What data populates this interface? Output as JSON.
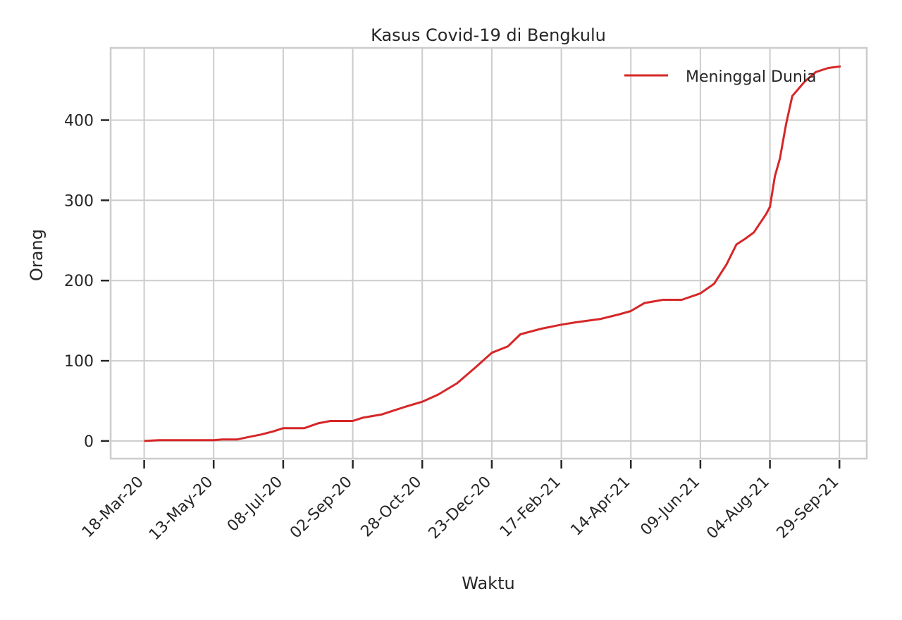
{
  "chart_data": {
    "type": "line",
    "title": "Kasus Covid-19 di Bengkulu",
    "xlabel": "Waktu",
    "ylabel": "Orang",
    "ylim": [
      -22,
      490
    ],
    "xlim": [
      "2020-02-20",
      "2021-10-21"
    ],
    "grid": true,
    "legend_position": "top-right",
    "x_ticks": [
      "2020-03-18",
      "2020-05-13",
      "2020-07-08",
      "2020-09-02",
      "2020-10-28",
      "2020-12-23",
      "2021-02-17",
      "2021-04-14",
      "2021-06-09",
      "2021-08-04",
      "2021-09-29"
    ],
    "x_tick_labels": [
      "18-Mar-20",
      "13-May-20",
      "08-Jul-20",
      "02-Sep-20",
      "28-Oct-20",
      "23-Dec-20",
      "17-Feb-21",
      "14-Apr-21",
      "09-Jun-21",
      "04-Aug-21",
      "29-Sep-21"
    ],
    "y_ticks": [
      0,
      100,
      200,
      300,
      400
    ],
    "y_tick_labels": [
      "0",
      "100",
      "200",
      "300",
      "400"
    ],
    "series": [
      {
        "name": "Meninggal Dunia",
        "color": "#d62728",
        "x": [
          "2020-03-18",
          "2020-03-30",
          "2020-04-15",
          "2020-05-13",
          "2020-05-20",
          "2020-06-01",
          "2020-06-10",
          "2020-06-20",
          "2020-06-30",
          "2020-07-08",
          "2020-07-25",
          "2020-08-05",
          "2020-08-15",
          "2020-09-02",
          "2020-09-10",
          "2020-09-25",
          "2020-10-05",
          "2020-10-15",
          "2020-10-28",
          "2020-11-10",
          "2020-11-25",
          "2020-12-10",
          "2020-12-23",
          "2021-01-05",
          "2021-01-15",
          "2021-02-01",
          "2021-02-17",
          "2021-03-01",
          "2021-03-20",
          "2021-04-05",
          "2021-04-14",
          "2021-04-25",
          "2021-05-10",
          "2021-05-25",
          "2021-06-09",
          "2021-06-20",
          "2021-06-30",
          "2021-07-08",
          "2021-07-15",
          "2021-07-22",
          "2021-08-01",
          "2021-08-04",
          "2021-08-08",
          "2021-08-12",
          "2021-08-17",
          "2021-08-22",
          "2021-09-01",
          "2021-09-10",
          "2021-09-20",
          "2021-09-30"
        ],
        "values": [
          0,
          1,
          1,
          1,
          2,
          2,
          5,
          8,
          12,
          16,
          16,
          22,
          25,
          25,
          29,
          33,
          38,
          43,
          49,
          58,
          72,
          92,
          110,
          118,
          133,
          140,
          145,
          148,
          152,
          158,
          162,
          172,
          176,
          176,
          184,
          196,
          220,
          245,
          252,
          260,
          283,
          292,
          330,
          352,
          395,
          430,
          448,
          460,
          465,
          467
        ]
      }
    ]
  }
}
